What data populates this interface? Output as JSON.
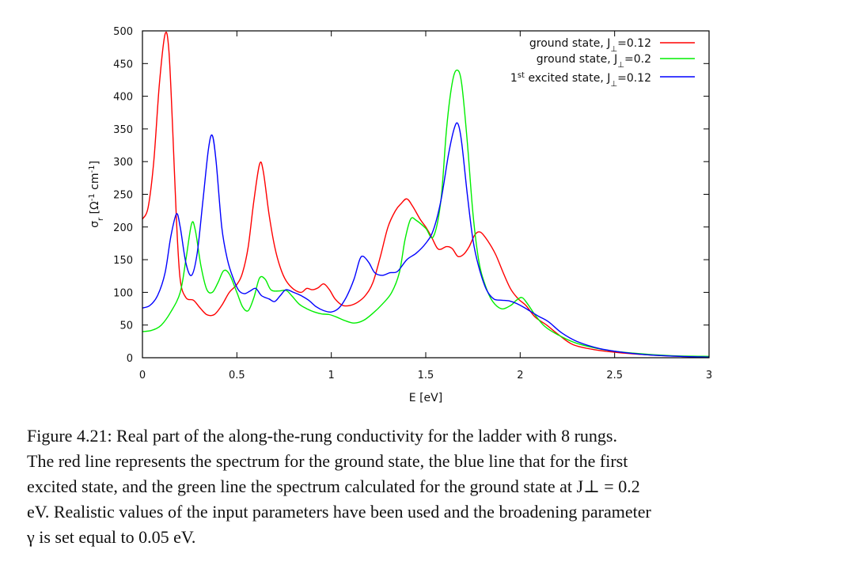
{
  "chart_data": {
    "type": "line",
    "xlabel": "E [eV]",
    "ylabel": {
      "main": "σ",
      "sub": "r",
      "rest": " [Ω",
      "sup1": "-1",
      "mid": " cm",
      "sup2": "-1",
      "end": "]"
    },
    "xlim": [
      0,
      3
    ],
    "ylim": [
      0,
      500
    ],
    "xticks": [
      {
        "value": 0,
        "label": "0"
      },
      {
        "value": 0.5,
        "label": "0.5"
      },
      {
        "value": 1,
        "label": "1"
      },
      {
        "value": 1.5,
        "label": "1.5"
      },
      {
        "value": 2,
        "label": "2"
      },
      {
        "value": 2.5,
        "label": "2.5"
      },
      {
        "value": 3,
        "label": "3"
      }
    ],
    "yticks": [
      {
        "value": 0,
        "label": "0"
      },
      {
        "value": 50,
        "label": "50"
      },
      {
        "value": 100,
        "label": "100"
      },
      {
        "value": 150,
        "label": "150"
      },
      {
        "value": 200,
        "label": "200"
      },
      {
        "value": 250,
        "label": "250"
      },
      {
        "value": 300,
        "label": "300"
      },
      {
        "value": 350,
        "label": "350"
      },
      {
        "value": 400,
        "label": "400"
      },
      {
        "value": 450,
        "label": "450"
      },
      {
        "value": 500,
        "label": "500"
      }
    ],
    "grid": false,
    "legend": "top-right",
    "series": [
      {
        "legend": {
          "pre": "ground state, J",
          "sub": "⊥",
          "post": "=0.12"
        },
        "color": "#ff0000",
        "points": [
          [
            0,
            212
          ],
          [
            0.03,
            230
          ],
          [
            0.06,
            300
          ],
          [
            0.09,
            420
          ],
          [
            0.12,
            495
          ],
          [
            0.14,
            470
          ],
          [
            0.16,
            350
          ],
          [
            0.18,
            210
          ],
          [
            0.2,
            120
          ],
          [
            0.23,
            92
          ],
          [
            0.27,
            88
          ],
          [
            0.3,
            78
          ],
          [
            0.34,
            66
          ],
          [
            0.38,
            66
          ],
          [
            0.42,
            80
          ],
          [
            0.46,
            100
          ],
          [
            0.5,
            112
          ],
          [
            0.53,
            130
          ],
          [
            0.56,
            170
          ],
          [
            0.59,
            240
          ],
          [
            0.62,
            296
          ],
          [
            0.64,
            285
          ],
          [
            0.67,
            220
          ],
          [
            0.7,
            170
          ],
          [
            0.73,
            138
          ],
          [
            0.76,
            118
          ],
          [
            0.8,
            105
          ],
          [
            0.84,
            100
          ],
          [
            0.87,
            106
          ],
          [
            0.9,
            104
          ],
          [
            0.93,
            107
          ],
          [
            0.96,
            113
          ],
          [
            0.99,
            104
          ],
          [
            1.02,
            90
          ],
          [
            1.06,
            80
          ],
          [
            1.1,
            80
          ],
          [
            1.14,
            85
          ],
          [
            1.18,
            95
          ],
          [
            1.22,
            115
          ],
          [
            1.26,
            155
          ],
          [
            1.3,
            200
          ],
          [
            1.34,
            225
          ],
          [
            1.37,
            236
          ],
          [
            1.4,
            243
          ],
          [
            1.43,
            232
          ],
          [
            1.47,
            212
          ],
          [
            1.5,
            200
          ],
          [
            1.53,
            185
          ],
          [
            1.56,
            168
          ],
          [
            1.58,
            166
          ],
          [
            1.61,
            170
          ],
          [
            1.64,
            167
          ],
          [
            1.67,
            155
          ],
          [
            1.7,
            158
          ],
          [
            1.73,
            170
          ],
          [
            1.76,
            188
          ],
          [
            1.79,
            192
          ],
          [
            1.83,
            178
          ],
          [
            1.87,
            158
          ],
          [
            1.91,
            130
          ],
          [
            1.95,
            105
          ],
          [
            1.99,
            90
          ],
          [
            2.03,
            80
          ],
          [
            2.08,
            62
          ],
          [
            2.14,
            50
          ],
          [
            2.2,
            36
          ],
          [
            2.28,
            20
          ],
          [
            2.4,
            12
          ],
          [
            2.55,
            7
          ],
          [
            2.7,
            4
          ],
          [
            2.85,
            2
          ],
          [
            3,
            1
          ]
        ]
      },
      {
        "legend": {
          "pre": "ground state, J",
          "sub": "⊥",
          "post": "=0.2"
        },
        "color": "#00ee00",
        "points": [
          [
            0,
            40
          ],
          [
            0.05,
            42
          ],
          [
            0.1,
            50
          ],
          [
            0.15,
            70
          ],
          [
            0.2,
            100
          ],
          [
            0.23,
            150
          ],
          [
            0.26,
            205
          ],
          [
            0.28,
            195
          ],
          [
            0.31,
            140
          ],
          [
            0.34,
            105
          ],
          [
            0.37,
            100
          ],
          [
            0.4,
            115
          ],
          [
            0.43,
            133
          ],
          [
            0.46,
            128
          ],
          [
            0.5,
            100
          ],
          [
            0.53,
            78
          ],
          [
            0.56,
            72
          ],
          [
            0.59,
            92
          ],
          [
            0.62,
            122
          ],
          [
            0.65,
            120
          ],
          [
            0.68,
            104
          ],
          [
            0.72,
            102
          ],
          [
            0.76,
            103
          ],
          [
            0.79,
            95
          ],
          [
            0.83,
            82
          ],
          [
            0.87,
            75
          ],
          [
            0.91,
            70
          ],
          [
            0.95,
            67
          ],
          [
            0.99,
            66
          ],
          [
            1.03,
            62
          ],
          [
            1.07,
            57
          ],
          [
            1.12,
            53
          ],
          [
            1.17,
            57
          ],
          [
            1.22,
            68
          ],
          [
            1.27,
            82
          ],
          [
            1.32,
            100
          ],
          [
            1.36,
            130
          ],
          [
            1.39,
            180
          ],
          [
            1.42,
            212
          ],
          [
            1.45,
            210
          ],
          [
            1.5,
            198
          ],
          [
            1.54,
            185
          ],
          [
            1.58,
            240
          ],
          [
            1.61,
            350
          ],
          [
            1.64,
            420
          ],
          [
            1.665,
            440
          ],
          [
            1.69,
            420
          ],
          [
            1.72,
            330
          ],
          [
            1.75,
            220
          ],
          [
            1.78,
            150
          ],
          [
            1.81,
            115
          ],
          [
            1.85,
            88
          ],
          [
            1.9,
            75
          ],
          [
            1.95,
            80
          ],
          [
            1.98,
            88
          ],
          [
            2.01,
            92
          ],
          [
            2.04,
            82
          ],
          [
            2.08,
            65
          ],
          [
            2.13,
            48
          ],
          [
            2.2,
            35
          ],
          [
            2.3,
            22
          ],
          [
            2.45,
            12
          ],
          [
            2.6,
            7
          ],
          [
            2.8,
            3
          ],
          [
            3,
            2
          ]
        ]
      },
      {
        "legend": {
          "pre": "excited state, J",
          "sub": "⊥",
          "post": "=0.12",
          "prefix": "1",
          "prefix_sup": "st"
        },
        "color": "#0000ff",
        "points": [
          [
            0,
            76
          ],
          [
            0.04,
            80
          ],
          [
            0.08,
            95
          ],
          [
            0.12,
            130
          ],
          [
            0.15,
            185
          ],
          [
            0.18,
            220
          ],
          [
            0.2,
            200
          ],
          [
            0.23,
            145
          ],
          [
            0.26,
            126
          ],
          [
            0.29,
            160
          ],
          [
            0.32,
            240
          ],
          [
            0.35,
            320
          ],
          [
            0.37,
            340
          ],
          [
            0.39,
            300
          ],
          [
            0.42,
            200
          ],
          [
            0.45,
            150
          ],
          [
            0.48,
            122
          ],
          [
            0.51,
            103
          ],
          [
            0.54,
            98
          ],
          [
            0.57,
            102
          ],
          [
            0.6,
            106
          ],
          [
            0.63,
            95
          ],
          [
            0.67,
            90
          ],
          [
            0.7,
            86
          ],
          [
            0.73,
            95
          ],
          [
            0.76,
            104
          ],
          [
            0.8,
            100
          ],
          [
            0.84,
            95
          ],
          [
            0.88,
            88
          ],
          [
            0.92,
            78
          ],
          [
            0.96,
            72
          ],
          [
            1,
            70
          ],
          [
            1.04,
            76
          ],
          [
            1.08,
            93
          ],
          [
            1.12,
            120
          ],
          [
            1.15,
            150
          ],
          [
            1.17,
            155
          ],
          [
            1.2,
            145
          ],
          [
            1.23,
            130
          ],
          [
            1.27,
            126
          ],
          [
            1.31,
            130
          ],
          [
            1.35,
            132
          ],
          [
            1.4,
            150
          ],
          [
            1.45,
            160
          ],
          [
            1.5,
            175
          ],
          [
            1.54,
            195
          ],
          [
            1.58,
            240
          ],
          [
            1.62,
            310
          ],
          [
            1.65,
            350
          ],
          [
            1.67,
            358
          ],
          [
            1.69,
            330
          ],
          [
            1.72,
            250
          ],
          [
            1.75,
            180
          ],
          [
            1.78,
            140
          ],
          [
            1.82,
            105
          ],
          [
            1.86,
            90
          ],
          [
            1.9,
            88
          ],
          [
            1.94,
            87
          ],
          [
            1.98,
            83
          ],
          [
            2.02,
            77
          ],
          [
            2.06,
            70
          ],
          [
            2.1,
            63
          ],
          [
            2.15,
            55
          ],
          [
            2.22,
            38
          ],
          [
            2.3,
            25
          ],
          [
            2.42,
            14
          ],
          [
            2.55,
            8
          ],
          [
            2.7,
            4
          ],
          [
            2.85,
            2
          ],
          [
            3,
            1
          ]
        ]
      }
    ]
  },
  "caption": {
    "lines": [
      "Figure 4.21:  Real part of the along-the-rung conductivity for the ladder with 8 rungs.",
      "The red line represents the spectrum for the ground state, the blue line that for the first",
      "excited state, and the green line the spectrum calculated for the ground state at J⊥ = 0.2",
      "eV. Realistic values of the input parameters have been used and the broadening parameter",
      "γ is set equal to 0.05 eV."
    ]
  }
}
